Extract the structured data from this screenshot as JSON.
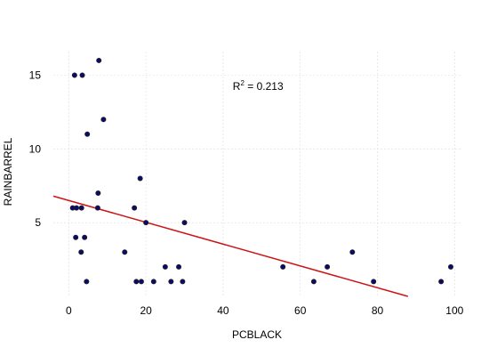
{
  "chart_data": {
    "type": "scatter",
    "xlabel": "PCBLACK",
    "ylabel": "RAINBARREL",
    "xlim": [
      -4,
      102
    ],
    "ylim": [
      0,
      16.6
    ],
    "x_ticks": [
      0,
      20,
      40,
      60,
      80,
      100
    ],
    "y_ticks": [
      5,
      10,
      15
    ],
    "x_tick_labels": [
      "0",
      "20",
      "40",
      "60",
      "80",
      "100"
    ],
    "y_tick_labels": [
      "5",
      "10",
      "15"
    ],
    "grid": true,
    "annotation": {
      "base": "R",
      "superscript": "2",
      "rest": " = 0.213",
      "x": 42.5,
      "y": 14.0
    },
    "points": [
      {
        "x": 1.5,
        "y": 15
      },
      {
        "x": 3.5,
        "y": 15
      },
      {
        "x": 7.8,
        "y": 16
      },
      {
        "x": 9,
        "y": 12
      },
      {
        "x": 4.8,
        "y": 11
      },
      {
        "x": 7.6,
        "y": 7
      },
      {
        "x": 18.5,
        "y": 8
      },
      {
        "x": 1,
        "y": 6
      },
      {
        "x": 2,
        "y": 6
      },
      {
        "x": 3.3,
        "y": 6
      },
      {
        "x": 7.5,
        "y": 6
      },
      {
        "x": 17,
        "y": 6
      },
      {
        "x": 20,
        "y": 5
      },
      {
        "x": 30,
        "y": 5
      },
      {
        "x": 1.8,
        "y": 4
      },
      {
        "x": 4.1,
        "y": 4
      },
      {
        "x": 3.2,
        "y": 3
      },
      {
        "x": 14.5,
        "y": 3
      },
      {
        "x": 73.5,
        "y": 3
      },
      {
        "x": 25,
        "y": 2
      },
      {
        "x": 28.5,
        "y": 2
      },
      {
        "x": 55.5,
        "y": 2
      },
      {
        "x": 67,
        "y": 2
      },
      {
        "x": 99,
        "y": 2
      },
      {
        "x": 4.6,
        "y": 1
      },
      {
        "x": 17.5,
        "y": 1
      },
      {
        "x": 18.8,
        "y": 1
      },
      {
        "x": 22,
        "y": 1
      },
      {
        "x": 26.5,
        "y": 1
      },
      {
        "x": 29.5,
        "y": 1
      },
      {
        "x": 63.5,
        "y": 1
      },
      {
        "x": 79,
        "y": 1
      },
      {
        "x": 96.5,
        "y": 1
      }
    ],
    "trend_line": {
      "x_start": -4,
      "y_start": 6.8,
      "x_end": 87.9,
      "y_end": 0
    },
    "colors": {
      "points": "#0a0a6e",
      "point_outline": "#222222",
      "trend_line": "#cc1414",
      "grid": "#dddddd"
    }
  }
}
